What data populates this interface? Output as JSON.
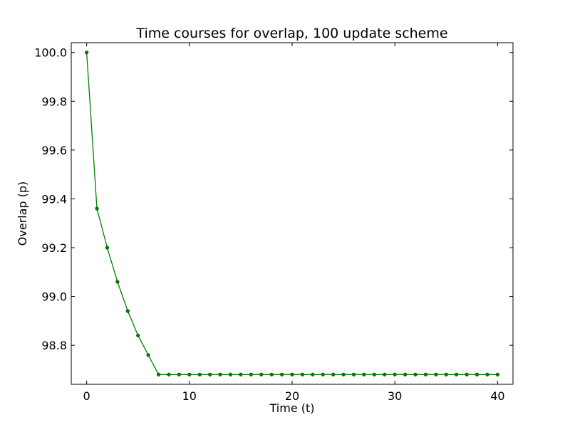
{
  "chart_data": {
    "type": "line",
    "title": "Time courses for overlap, 100 update scheme",
    "xlabel": "Time (t)",
    "ylabel": "Overlap (p)",
    "xlim": [
      -1.5,
      41.5
    ],
    "ylim": [
      98.64,
      100.04
    ],
    "x_ticks": [
      0,
      10,
      20,
      30,
      40
    ],
    "x_tick_labels": [
      "0",
      "10",
      "20",
      "30",
      "40"
    ],
    "y_ticks": [
      98.8,
      99.0,
      99.2,
      99.4,
      99.6,
      99.8,
      100.0
    ],
    "y_tick_labels": [
      "98.8",
      "99.0",
      "99.2",
      "99.4",
      "99.6",
      "99.8",
      "100.0"
    ],
    "grid": false,
    "legend": "none",
    "series": [
      {
        "color": "#008000",
        "marker": "dot",
        "x": [
          0,
          1,
          2,
          3,
          4,
          5,
          6,
          7,
          8,
          9,
          10,
          11,
          12,
          13,
          14,
          15,
          16,
          17,
          18,
          19,
          20,
          21,
          22,
          23,
          24,
          25,
          26,
          27,
          28,
          29,
          30,
          31,
          32,
          33,
          34,
          35,
          36,
          37,
          38,
          39,
          40
        ],
        "y": [
          100.0,
          99.36,
          99.2,
          99.06,
          98.94,
          98.84,
          98.76,
          98.68,
          98.68,
          98.68,
          98.68,
          98.68,
          98.68,
          98.68,
          98.68,
          98.68,
          98.68,
          98.68,
          98.68,
          98.68,
          98.68,
          98.68,
          98.68,
          98.68,
          98.68,
          98.68,
          98.68,
          98.68,
          98.68,
          98.68,
          98.68,
          98.68,
          98.68,
          98.68,
          98.68,
          98.68,
          98.68,
          98.68,
          98.68,
          98.68,
          98.68
        ]
      }
    ]
  }
}
